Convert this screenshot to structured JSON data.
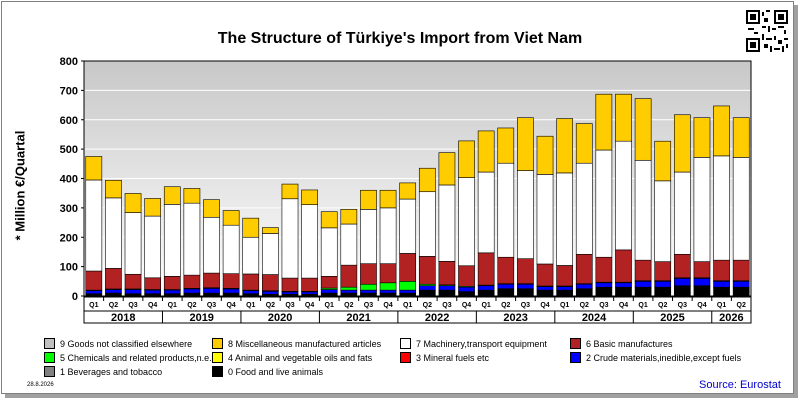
{
  "title": "The Structure of Türkiye's Import from Viet Nam",
  "date_label": "28.8.2026",
  "source": "Source: Eurostat",
  "icons": {
    "qr": "qr-code-icon"
  },
  "colors": {
    "plot_bg_top": "#c8c8c8",
    "plot_bg_bottom": "#ffffff",
    "source_text": "#0000cc"
  },
  "chart_data": {
    "type": "bar",
    "stacked": true,
    "title": "The Structure of Türkiye's Import from Viet Nam",
    "ylabel": "* Million €/Quartal",
    "xlabel": "",
    "ylim": [
      0,
      800
    ],
    "yticks": [
      0,
      100,
      200,
      300,
      400,
      500,
      600,
      700,
      800
    ],
    "grid": true,
    "legend_position": "bottom",
    "categories": [
      "Q1",
      "Q2",
      "Q3",
      "Q4",
      "Q1",
      "Q2",
      "Q3",
      "Q4",
      "Q1",
      "Q2",
      "Q3",
      "Q4",
      "Q1",
      "Q2",
      "Q3",
      "Q4",
      "Q1",
      "Q2",
      "Q3",
      "Q4",
      "Q1",
      "Q2",
      "Q3",
      "Q4",
      "Q1",
      "Q2",
      "Q3",
      "Q4",
      "Q1",
      "Q2",
      "Q3",
      "Q4",
      "Q1",
      "Q2"
    ],
    "years": [
      {
        "label": "2018",
        "start": 0,
        "count": 4
      },
      {
        "label": "2019",
        "start": 4,
        "count": 4
      },
      {
        "label": "2020",
        "start": 8,
        "count": 4
      },
      {
        "label": "2021",
        "start": 12,
        "count": 4
      },
      {
        "label": "2022",
        "start": 16,
        "count": 4
      },
      {
        "label": "2023",
        "start": 20,
        "count": 4
      },
      {
        "label": "2024",
        "start": 24,
        "count": 4
      },
      {
        "label": "2025",
        "start": 28,
        "count": 4
      },
      {
        "label": "2026",
        "start": 32,
        "count": 2
      }
    ],
    "series": [
      {
        "name": "0 Food and live animals",
        "color": "#000000",
        "values": [
          8,
          10,
          8,
          8,
          8,
          10,
          10,
          10,
          8,
          6,
          6,
          6,
          10,
          10,
          10,
          10,
          10,
          20,
          20,
          15,
          20,
          25,
          25,
          20,
          20,
          25,
          30,
          30,
          30,
          30,
          35,
          35,
          30,
          30
        ]
      },
      {
        "name": "1 Beverages and tobacco",
        "color": "#808080",
        "values": [
          0,
          0,
          0,
          0,
          0,
          0,
          0,
          0,
          0,
          0,
          0,
          0,
          0,
          0,
          0,
          0,
          0,
          0,
          0,
          0,
          0,
          0,
          0,
          0,
          0,
          0,
          0,
          0,
          0,
          0,
          0,
          0,
          0,
          0
        ]
      },
      {
        "name": "2 Crude materials,inedible,except fuels",
        "color": "#0000ff",
        "values": [
          10,
          12,
          14,
          12,
          12,
          14,
          16,
          14,
          10,
          10,
          8,
          8,
          12,
          10,
          10,
          10,
          10,
          15,
          15,
          15,
          15,
          15,
          15,
          12,
          12,
          15,
          15,
          15,
          20,
          20,
          25,
          25,
          20,
          20
        ]
      },
      {
        "name": "3 Mineral fuels etc",
        "color": "#ff0000",
        "values": [
          0,
          0,
          0,
          0,
          0,
          0,
          0,
          0,
          0,
          0,
          0,
          0,
          0,
          0,
          0,
          0,
          0,
          0,
          0,
          0,
          0,
          0,
          0,
          0,
          0,
          0,
          0,
          0,
          0,
          0,
          0,
          0,
          0,
          0
        ]
      },
      {
        "name": "4 Animal and vegetable oils and fats",
        "color": "#ffff00",
        "values": [
          0,
          0,
          0,
          0,
          0,
          0,
          0,
          0,
          0,
          0,
          0,
          0,
          0,
          0,
          0,
          0,
          0,
          0,
          0,
          0,
          0,
          0,
          0,
          0,
          0,
          0,
          0,
          0,
          0,
          0,
          0,
          0,
          0,
          0
        ]
      },
      {
        "name": "5 Chemicals and related products,n.e.s.",
        "color": "#00ff00",
        "values": [
          2,
          2,
          2,
          2,
          2,
          2,
          2,
          2,
          2,
          2,
          2,
          2,
          5,
          10,
          20,
          25,
          30,
          5,
          3,
          3,
          2,
          2,
          2,
          2,
          2,
          2,
          2,
          2,
          2,
          2,
          2,
          2,
          2,
          2
        ]
      },
      {
        "name": "6 Basic manufactures",
        "color": "#b22222",
        "values": [
          65,
          70,
          50,
          40,
          45,
          45,
          50,
          50,
          55,
          55,
          45,
          45,
          40,
          75,
          70,
          65,
          95,
          95,
          80,
          70,
          110,
          90,
          85,
          75,
          70,
          100,
          85,
          110,
          70,
          65,
          80,
          55,
          70,
          70
        ]
      },
      {
        "name": "7 Machinery,transport equipment",
        "color": "#ffffff",
        "values": [
          310,
          240,
          210,
          210,
          245,
          245,
          190,
          165,
          125,
          140,
          270,
          250,
          165,
          140,
          185,
          190,
          185,
          220,
          260,
          300,
          275,
          320,
          300,
          305,
          315,
          310,
          365,
          370,
          340,
          275,
          280,
          355,
          355,
          350
        ]
      },
      {
        "name": "8 Miscellaneous manufactured articles",
        "color": "#ffcc00",
        "values": [
          80,
          60,
          65,
          60,
          60,
          50,
          60,
          50,
          65,
          20,
          50,
          50,
          55,
          50,
          65,
          60,
          55,
          80,
          110,
          125,
          140,
          120,
          180,
          130,
          185,
          135,
          190,
          160,
          210,
          135,
          195,
          135,
          170,
          135
        ]
      },
      {
        "name": "9 Goods not classified elsewhere",
        "color": "#c0c0c0",
        "values": [
          0,
          0,
          0,
          0,
          0,
          0,
          0,
          0,
          0,
          0,
          0,
          0,
          0,
          0,
          0,
          0,
          0,
          0,
          0,
          0,
          0,
          0,
          0,
          0,
          0,
          0,
          0,
          0,
          0,
          0,
          0,
          0,
          0,
          0
        ]
      }
    ]
  }
}
